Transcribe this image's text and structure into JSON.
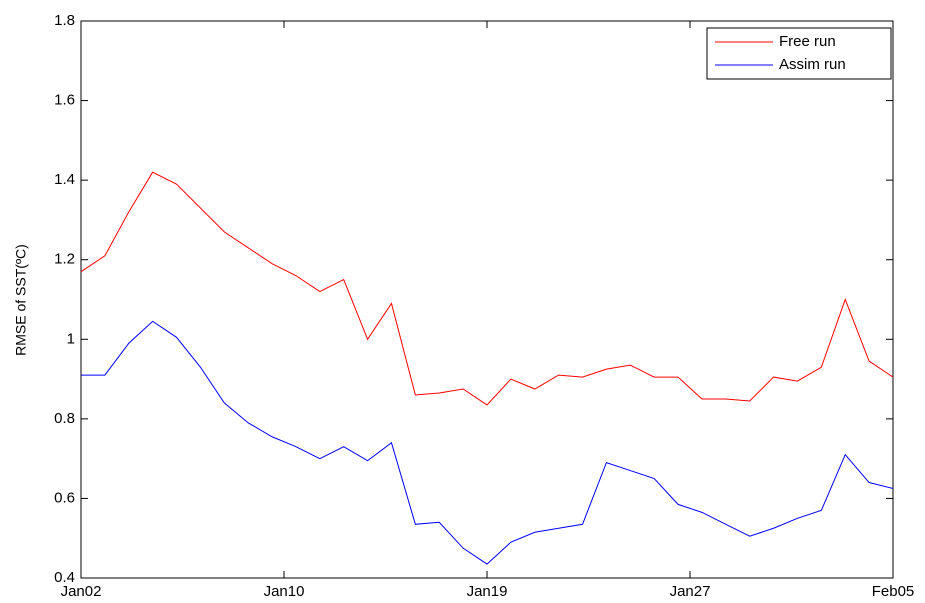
{
  "chart_data": {
    "type": "line",
    "y_label": "RMSE of SST(ºC)",
    "x": [
      0,
      1,
      2,
      3,
      4,
      5,
      6,
      7,
      8,
      9,
      10,
      11,
      12,
      13,
      14,
      15,
      16,
      17,
      18,
      19,
      20,
      21,
      22,
      23,
      24,
      25,
      26,
      27,
      28,
      29,
      30,
      31,
      32,
      33,
      34
    ],
    "xlim": [
      0,
      34
    ],
    "xticks": [
      {
        "value": 0,
        "label": "Jan02"
      },
      {
        "value": 8.5,
        "label": "Jan10"
      },
      {
        "value": 17,
        "label": "Jan19"
      },
      {
        "value": 25.5,
        "label": "Jan27"
      },
      {
        "value": 34,
        "label": "Feb05"
      }
    ],
    "ylim": [
      0.4,
      1.8
    ],
    "yticks": [
      0.4,
      0.6,
      0.8,
      1,
      1.2,
      1.4,
      1.6,
      1.8
    ],
    "legend_position": "upper right",
    "series": [
      {
        "name": "Free run",
        "color": "#ff0000",
        "values": [
          1.17,
          1.21,
          1.32,
          1.42,
          1.39,
          1.33,
          1.27,
          1.23,
          1.19,
          1.16,
          1.12,
          1.15,
          1.0,
          1.09,
          0.86,
          0.865,
          0.875,
          0.835,
          0.9,
          0.875,
          0.91,
          0.905,
          0.925,
          0.935,
          0.905,
          0.905,
          0.85,
          0.85,
          0.845,
          0.905,
          0.895,
          0.93,
          1.1,
          0.945,
          0.905
        ]
      },
      {
        "name": "Assim run",
        "color": "#0000ff",
        "values": [
          0.91,
          0.91,
          0.99,
          1.045,
          1.005,
          0.93,
          0.84,
          0.79,
          0.755,
          0.73,
          0.7,
          0.73,
          0.695,
          0.74,
          0.535,
          0.54,
          0.475,
          0.435,
          0.49,
          0.515,
          0.525,
          0.535,
          0.69,
          0.67,
          0.65,
          0.585,
          0.565,
          0.535,
          0.505,
          0.525,
          0.55,
          0.57,
          0.71,
          0.64,
          0.625
        ]
      }
    ]
  }
}
